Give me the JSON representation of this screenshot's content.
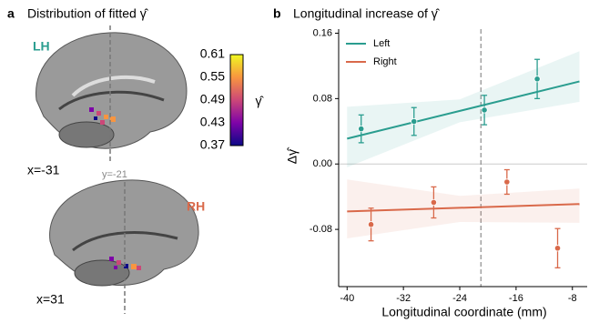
{
  "chart_data": [
    {
      "type": "brain-map",
      "panel": "a",
      "title": "Distribution of fitted γ̂",
      "labels": {
        "lh": "LH",
        "rh": "RH",
        "lh_slice": "x=-31",
        "rh_slice": "x=31",
        "coronal": "y=-21"
      },
      "lh_color": "#2a9d8f",
      "rh_color": "#d9694a",
      "colorbar": {
        "label": "γ̂",
        "lim": [
          0.37,
          0.61
        ],
        "ticks": [
          0.61,
          0.55,
          0.49,
          0.43,
          0.37
        ],
        "colormap": [
          "#0d0887",
          "#7e03a8",
          "#cc4778",
          "#f89540",
          "#f0f921"
        ]
      }
    },
    {
      "type": "errorbar-fit",
      "panel": "b",
      "title": "Longitudinal increase of γ̂",
      "xlabel": "Longitudinal coordinate (mm)",
      "ylabel": "Δγ̂",
      "xlim": [
        -41.2,
        -5.9
      ],
      "ylim": [
        -0.15,
        0.165
      ],
      "xticks": [
        -40,
        -32,
        -24,
        -16,
        -8
      ],
      "yticks": [
        0.16,
        0.08,
        {
          "value": 0,
          "label": "0.00"
        },
        -0.08
      ],
      "vline": -21,
      "hline": 0,
      "legend": "upper-left",
      "series": [
        {
          "name": "Left",
          "color": "#2a9d8f",
          "x": [
            -38,
            -30.5,
            -20.5,
            -13
          ],
          "values": [
            0.043,
            0.052,
            0.066,
            0.104
          ],
          "errors": [
            0.017,
            0.017,
            0.018,
            0.024
          ],
          "fit": {
            "x": [
              -40,
              -7
            ],
            "values": [
              0.031,
              0.101
            ]
          },
          "band": {
            "x": [
              -40,
              -24,
              -7
            ],
            "upper": [
              0.07,
              0.079,
              0.138
            ],
            "lower": [
              -0.004,
              0.051,
              0.076
            ]
          }
        },
        {
          "name": "Right",
          "color": "#d9694a",
          "x": [
            -36.6,
            -27.7,
            -17.3,
            -10.1
          ],
          "values": [
            -0.074,
            -0.047,
            -0.022,
            -0.103
          ],
          "errors": [
            0.02,
            0.019,
            0.015,
            0.024
          ],
          "fit": {
            "x": [
              -40,
              -7
            ],
            "values": [
              -0.058,
              -0.049
            ]
          },
          "band": {
            "x": [
              -40,
              -24,
              -7
            ],
            "upper": [
              -0.019,
              -0.039,
              -0.03
            ],
            "lower": [
              -0.091,
              -0.071,
              -0.072
            ]
          }
        }
      ]
    }
  ]
}
